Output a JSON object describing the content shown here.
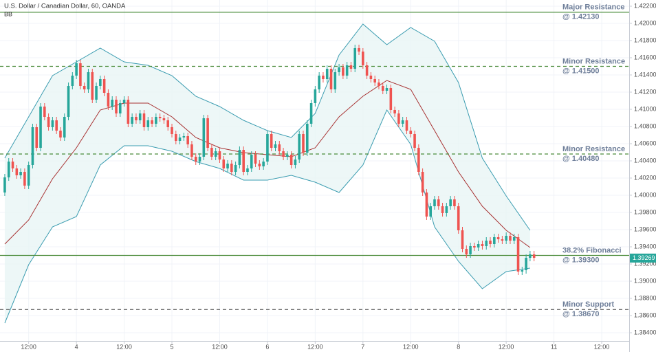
{
  "chart_data": {
    "type": "candlestick",
    "title": "U.S. Dollar / Canadian Dollar, 60, OANDA",
    "indicator": "BB",
    "grid": true,
    "colors": {
      "up": "#26a69a",
      "down": "#ef5350"
    },
    "xlim": [
      -19.2,
      138.9
    ],
    "xticks": [
      {
        "value": -12,
        "label": "12:00"
      },
      {
        "value": 0,
        "label": "4"
      },
      {
        "value": 12,
        "label": "12:00"
      },
      {
        "value": 24,
        "label": "5"
      },
      {
        "value": 36,
        "label": "12:00"
      },
      {
        "value": 48,
        "label": "6"
      },
      {
        "value": 60,
        "label": "12:00"
      },
      {
        "value": 72,
        "label": "7"
      },
      {
        "value": 84,
        "label": "12:00"
      },
      {
        "value": 96,
        "label": "8"
      },
      {
        "value": 108,
        "label": "12:00"
      },
      {
        "value": 120,
        "label": "11"
      },
      {
        "value": 132,
        "label": "12:00"
      }
    ],
    "ylim": [
      1.38304,
      1.42272
    ],
    "yticks": [
      {
        "value": 1.384,
        "label": "1.38400"
      },
      {
        "value": 1.386,
        "label": "1.38600"
      },
      {
        "value": 1.388,
        "label": "1.38800"
      },
      {
        "value": 1.39,
        "label": "1.39000"
      },
      {
        "value": 1.392,
        "label": "1.39200"
      },
      {
        "value": 1.394,
        "label": "1.39400"
      },
      {
        "value": 1.396,
        "label": "1.39600"
      },
      {
        "value": 1.398,
        "label": "1.39800"
      },
      {
        "value": 1.4,
        "label": "1.40000"
      },
      {
        "value": 1.402,
        "label": "1.40200"
      },
      {
        "value": 1.404,
        "label": "1.40400"
      },
      {
        "value": 1.406,
        "label": "1.40600"
      },
      {
        "value": 1.408,
        "label": "1.40800"
      },
      {
        "value": 1.41,
        "label": "1.41000"
      },
      {
        "value": 1.412,
        "label": "1.41200"
      },
      {
        "value": 1.414,
        "label": "1.41400"
      },
      {
        "value": 1.416,
        "label": "1.41600"
      },
      {
        "value": 1.418,
        "label": "1.41800"
      },
      {
        "value": 1.42,
        "label": "1.42000"
      },
      {
        "value": 1.422,
        "label": "1.42200"
      }
    ],
    "x": [
      -18,
      -17,
      -16,
      -15,
      -14,
      -13,
      -12,
      -11,
      -10,
      -9,
      -8,
      -7,
      -6,
      -5,
      -4,
      -3,
      -2,
      -1,
      0,
      1,
      2,
      3,
      4,
      5,
      6,
      7,
      8,
      9,
      10,
      11,
      12,
      13,
      14,
      15,
      16,
      17,
      18,
      19,
      20,
      21,
      22,
      23,
      24,
      25,
      26,
      27,
      28,
      29,
      30,
      31,
      32,
      33,
      34,
      35,
      36,
      37,
      38,
      39,
      40,
      41,
      42,
      43,
      44,
      45,
      46,
      47,
      48,
      49,
      50,
      51,
      52,
      53,
      54,
      55,
      56,
      57,
      58,
      59,
      60,
      61,
      62,
      63,
      64,
      65,
      66,
      67,
      68,
      69,
      70,
      71,
      72,
      73,
      74,
      75,
      76,
      77,
      78,
      79,
      80,
      81,
      82,
      83,
      84,
      85,
      86,
      87,
      88,
      89,
      90,
      91,
      92,
      93,
      94,
      95,
      96,
      97,
      98,
      99,
      100,
      101,
      102,
      103,
      104,
      105,
      106,
      107,
      108,
      109,
      110,
      111,
      112,
      113,
      114,
      115
    ],
    "open": [
      1.40032,
      1.40208,
      1.40392,
      1.40312,
      1.40232,
      1.40272,
      1.40112,
      1.40352,
      1.40792,
      1.40552,
      1.41032,
      1.40912,
      1.40792,
      1.40872,
      1.40752,
      1.40672,
      1.40912,
      1.41272,
      1.41392,
      1.41536,
      1.41272,
      1.41232,
      1.41432,
      1.41112,
      1.41272,
      1.41352,
      1.41192,
      1.41032,
      1.41112,
      1.40952,
      1.41072,
      1.41112,
      1.40832,
      1.40912,
      1.40872,
      1.40952,
      1.40792,
      1.40872,
      1.40832,
      1.40912,
      1.40896,
      1.40872,
      1.40792,
      1.40712,
      1.40632,
      1.40672,
      1.40688,
      1.40592,
      1.40448,
      1.40392,
      1.40448,
      1.40896,
      1.40552,
      1.40448,
      1.40512,
      1.40416,
      1.40312,
      1.40368,
      1.40272,
      1.40352,
      1.40528,
      1.40272,
      1.40312,
      1.40472,
      1.40368,
      1.40336,
      1.40392,
      1.40712,
      1.40552,
      1.40592,
      1.40512,
      1.40448,
      1.40472,
      1.40352,
      1.40416,
      1.40712,
      1.40496,
      1.40832,
      1.41072,
      1.41232,
      1.41392,
      1.41352,
      1.41472,
      1.41232,
      1.41432,
      1.41488,
      1.41392,
      1.41512,
      1.41472,
      1.41712,
      1.41672,
      1.41512,
      1.41392,
      1.41352,
      1.41312,
      1.41272,
      1.41216,
      1.41248,
      1.40992,
      1.40952,
      1.40832,
      1.40872,
      1.40752,
      1.40712,
      1.40552,
      1.40272,
      1.40032,
      1.39752,
      1.39872,
      1.39952,
      1.39872,
      1.39792,
      1.39872,
      1.39952,
      1.39872,
      1.39592,
      1.39376,
      1.39312,
      1.39408,
      1.39392,
      1.39432,
      1.39408,
      1.39472,
      1.39432,
      1.39512,
      1.39488,
      1.39472,
      1.39528,
      1.39472,
      1.39512,
      1.39112,
      1.39128,
      1.39272,
      1.39312
    ],
    "high": [
      1.40248,
      1.40432,
      1.40432,
      1.40352,
      1.40312,
      1.40312,
      1.40392,
      1.40832,
      1.40832,
      1.41072,
      1.41072,
      1.40952,
      1.40912,
      1.40912,
      1.40792,
      1.40952,
      1.41312,
      1.41432,
      1.41576,
      1.41576,
      1.41312,
      1.41472,
      1.41472,
      1.41312,
      1.41392,
      1.41392,
      1.41232,
      1.41152,
      1.41152,
      1.41112,
      1.41152,
      1.41152,
      1.40952,
      1.40952,
      1.40992,
      1.40992,
      1.40912,
      1.40912,
      1.40952,
      1.40952,
      1.40936,
      1.40912,
      1.40832,
      1.40752,
      1.40712,
      1.40728,
      1.40728,
      1.40632,
      1.40488,
      1.40488,
      1.40936,
      1.40936,
      1.40592,
      1.40552,
      1.40552,
      1.40456,
      1.40408,
      1.40408,
      1.40392,
      1.40568,
      1.40568,
      1.40352,
      1.40512,
      1.40512,
      1.40408,
      1.40432,
      1.40752,
      1.40752,
      1.40632,
      1.40632,
      1.40552,
      1.40512,
      1.40512,
      1.40456,
      1.40752,
      1.40752,
      1.40872,
      1.41112,
      1.41272,
      1.41432,
      1.41432,
      1.41512,
      1.41512,
      1.41472,
      1.41528,
      1.41528,
      1.41552,
      1.41552,
      1.41752,
      1.41752,
      1.41712,
      1.41552,
      1.41432,
      1.41392,
      1.41352,
      1.41312,
      1.41288,
      1.41288,
      1.41032,
      1.40992,
      1.40912,
      1.40912,
      1.40792,
      1.40752,
      1.40592,
      1.40312,
      1.40072,
      1.39912,
      1.39992,
      1.39992,
      1.39912,
      1.39912,
      1.39992,
      1.39992,
      1.39912,
      1.39632,
      1.39416,
      1.39448,
      1.39448,
      1.39472,
      1.39472,
      1.39512,
      1.39512,
      1.39552,
      1.39552,
      1.39528,
      1.39568,
      1.39568,
      1.39552,
      1.39552,
      1.39168,
      1.39312,
      1.39352,
      1.39352
    ],
    "low": [
      1.39992,
      1.40168,
      1.40272,
      1.40192,
      1.40192,
      1.40072,
      1.40072,
      1.40312,
      1.40512,
      1.40512,
      1.40872,
      1.40752,
      1.40752,
      1.40712,
      1.40632,
      1.40632,
      1.40872,
      1.41232,
      1.41352,
      1.41232,
      1.41192,
      1.41192,
      1.41072,
      1.41072,
      1.41232,
      1.41152,
      1.40992,
      1.40992,
      1.40912,
      1.40912,
      1.41032,
      1.40792,
      1.40792,
      1.40832,
      1.40832,
      1.40752,
      1.40752,
      1.40792,
      1.40792,
      1.40856,
      1.40832,
      1.40752,
      1.40672,
      1.40592,
      1.40592,
      1.40632,
      1.40552,
      1.40408,
      1.40352,
      1.40352,
      1.40408,
      1.40512,
      1.40408,
      1.40408,
      1.40376,
      1.40272,
      1.40272,
      1.40232,
      1.40232,
      1.40312,
      1.40232,
      1.40232,
      1.40272,
      1.40328,
      1.40296,
      1.40296,
      1.40352,
      1.40512,
      1.40512,
      1.40472,
      1.40408,
      1.40408,
      1.40312,
      1.40312,
      1.40376,
      1.40456,
      1.40456,
      1.40792,
      1.41032,
      1.41192,
      1.41312,
      1.41312,
      1.41192,
      1.41192,
      1.41392,
      1.41352,
      1.41352,
      1.41432,
      1.41432,
      1.41632,
      1.41472,
      1.41352,
      1.41312,
      1.41272,
      1.41232,
      1.41176,
      1.41176,
      1.40952,
      1.40912,
      1.40792,
      1.40792,
      1.40712,
      1.40672,
      1.40512,
      1.40232,
      1.39992,
      1.39712,
      1.39712,
      1.39832,
      1.39832,
      1.39752,
      1.39752,
      1.39832,
      1.39832,
      1.39552,
      1.39336,
      1.39272,
      1.39272,
      1.39352,
      1.39352,
      1.39368,
      1.39368,
      1.39392,
      1.39392,
      1.39448,
      1.39432,
      1.39432,
      1.39432,
      1.39432,
      1.39072,
      1.39072,
      1.39088,
      1.39232,
      1.39232
    ],
    "close": [
      1.40208,
      1.40392,
      1.40312,
      1.40232,
      1.40272,
      1.40112,
      1.40352,
      1.40792,
      1.40552,
      1.41032,
      1.40912,
      1.40792,
      1.40872,
      1.40752,
      1.40672,
      1.40912,
      1.41272,
      1.41392,
      1.41536,
      1.41272,
      1.41232,
      1.41432,
      1.41112,
      1.41272,
      1.41352,
      1.41192,
      1.41032,
      1.41112,
      1.40952,
      1.41072,
      1.41112,
      1.40832,
      1.40912,
      1.40872,
      1.40952,
      1.40792,
      1.40872,
      1.40832,
      1.40912,
      1.40896,
      1.40872,
      1.40792,
      1.40712,
      1.40632,
      1.40672,
      1.40688,
      1.40592,
      1.40448,
      1.40392,
      1.40448,
      1.40896,
      1.40552,
      1.40448,
      1.40512,
      1.40416,
      1.40312,
      1.40368,
      1.40272,
      1.40352,
      1.40528,
      1.40272,
      1.40312,
      1.40472,
      1.40368,
      1.40336,
      1.40392,
      1.40712,
      1.40552,
      1.40592,
      1.40512,
      1.40448,
      1.40472,
      1.40352,
      1.40416,
      1.40712,
      1.40496,
      1.40832,
      1.41072,
      1.41232,
      1.41392,
      1.41352,
      1.41472,
      1.41232,
      1.41432,
      1.41488,
      1.41392,
      1.41512,
      1.41472,
      1.41712,
      1.41672,
      1.41512,
      1.41392,
      1.41352,
      1.41312,
      1.41272,
      1.41216,
      1.41248,
      1.40992,
      1.40952,
      1.40832,
      1.40872,
      1.40752,
      1.40712,
      1.40552,
      1.40272,
      1.40032,
      1.39752,
      1.39872,
      1.39952,
      1.39872,
      1.39792,
      1.39872,
      1.39952,
      1.39872,
      1.39592,
      1.39376,
      1.39312,
      1.39408,
      1.39392,
      1.39432,
      1.39408,
      1.39472,
      1.39432,
      1.39512,
      1.39488,
      1.39472,
      1.39528,
      1.39472,
      1.39512,
      1.39112,
      1.39128,
      1.39272,
      1.39312,
      1.39272
    ],
    "bands": {
      "x": [
        -18,
        -12,
        -6,
        0,
        6,
        12,
        18,
        24,
        30,
        36,
        42,
        48,
        54,
        60,
        66,
        72,
        78,
        84,
        90,
        96,
        102,
        108,
        114
      ],
      "upper": [
        1.40432,
        1.40912,
        1.41392,
        1.41552,
        1.41712,
        1.41552,
        1.41512,
        1.41392,
        1.41152,
        1.41032,
        1.40872,
        1.40752,
        1.40672,
        1.40952,
        1.41632,
        1.41992,
        1.41752,
        1.41952,
        1.41792,
        1.41312,
        1.40432,
        1.39992,
        1.39592
      ],
      "middle": [
        1.39432,
        1.39712,
        1.40192,
        1.40552,
        1.40992,
        1.41072,
        1.41072,
        1.40912,
        1.40672,
        1.40552,
        1.40496,
        1.40472,
        1.40448,
        1.40552,
        1.40912,
        1.41152,
        1.41336,
        1.41232,
        1.40752,
        1.40272,
        1.39872,
        1.39592,
        1.39392
      ],
      "lower": [
        1.38512,
        1.39192,
        1.39632,
        1.39752,
        1.40352,
        1.40576,
        1.40576,
        1.40512,
        1.40392,
        1.40312,
        1.40176,
        1.40176,
        1.40232,
        1.40152,
        1.40032,
        1.40352,
        1.40992,
        1.40592,
        1.39632,
        1.39232,
        1.38912,
        1.39112,
        1.39152
      ],
      "band_color": "#3a9cb0",
      "fill_color": "#e9f5f5",
      "middle_color": "#a83232"
    },
    "levels": [
      {
        "value": 1.4213,
        "label": [
          "Major Resistance",
          "@ 1.42130"
        ],
        "style": "solid",
        "color": "#4a8b3a"
      },
      {
        "value": 1.415,
        "label": [
          "Minor Resistance",
          "@ 1.41500"
        ],
        "style": "dashed",
        "color": "#4a8b3a"
      },
      {
        "value": 1.4048,
        "label": [
          "Minor Resistance",
          "@ 1.40480"
        ],
        "style": "dashed",
        "color": "#4a8b3a"
      },
      {
        "value": 1.393,
        "label": [
          "38.2% Fibonacci",
          "@ 1.39300"
        ],
        "style": "solid",
        "color": "#4a8b3a"
      },
      {
        "value": 1.3867,
        "label": [
          "Minor Support",
          "@ 1.38670"
        ],
        "style": "dashed",
        "color": "#555555"
      }
    ],
    "last_price": 1.39269
  }
}
